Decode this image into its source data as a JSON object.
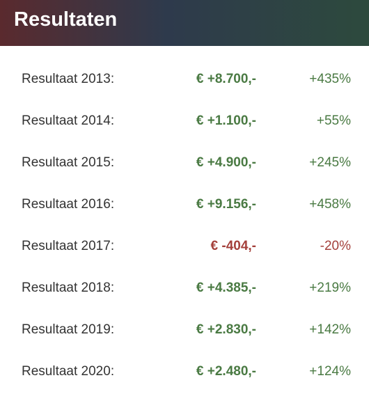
{
  "header": {
    "title": "Resultaten"
  },
  "colors": {
    "positive": "#4a7a43",
    "negative": "#a4403b",
    "label": "#333333"
  },
  "rows": [
    {
      "label": "Resultaat 2013:",
      "amount": "€ +8.700,-",
      "percent": "+435%",
      "sign": "pos"
    },
    {
      "label": "Resultaat 2014:",
      "amount": "€ +1.100,-",
      "percent": "+55%",
      "sign": "pos"
    },
    {
      "label": "Resultaat 2015:",
      "amount": "€ +4.900,-",
      "percent": "+245%",
      "sign": "pos"
    },
    {
      "label": "Resultaat 2016:",
      "amount": "€ +9.156,-",
      "percent": "+458%",
      "sign": "pos"
    },
    {
      "label": "Resultaat 2017:",
      "amount": "€ -404,-",
      "percent": "-20%",
      "sign": "neg"
    },
    {
      "label": "Resultaat 2018:",
      "amount": "€ +4.385,-",
      "percent": "+219%",
      "sign": "pos"
    },
    {
      "label": "Resultaat 2019:",
      "amount": "€ +2.830,-",
      "percent": "+142%",
      "sign": "pos"
    },
    {
      "label": "Resultaat 2020:",
      "amount": "€ +2.480,-",
      "percent": "+124%",
      "sign": "pos"
    }
  ]
}
